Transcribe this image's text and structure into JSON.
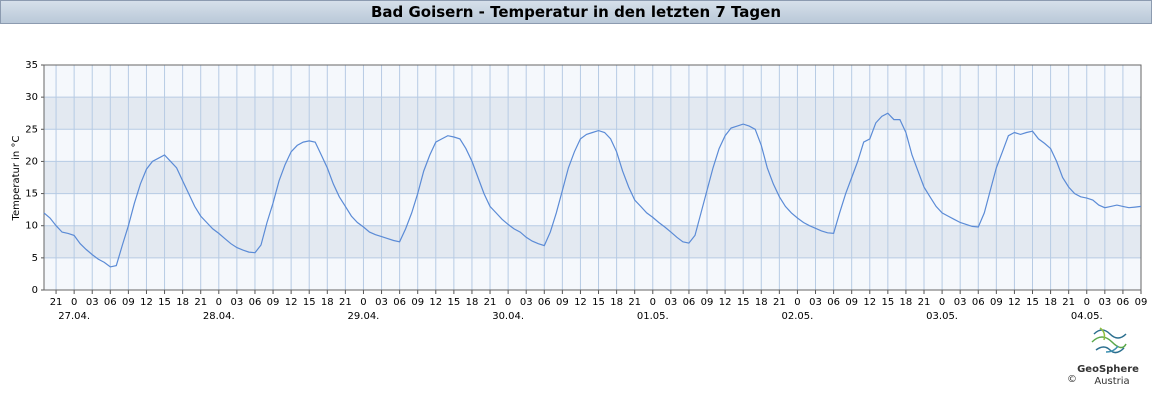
{
  "chart_data": {
    "type": "line",
    "title": "Bad Goisern - Temperatur in den letzten 7 Tagen",
    "y_label": "Temperatur in °C",
    "ylim": [
      0,
      35
    ],
    "yticks": [
      0,
      5,
      10,
      15,
      20,
      25,
      30,
      35
    ],
    "xlim": [
      -5,
      177
    ],
    "xticks": [
      {
        "value": -3,
        "label": "21"
      },
      {
        "value": 0,
        "label": "0"
      },
      {
        "value": 3,
        "label": "03"
      },
      {
        "value": 6,
        "label": "06"
      },
      {
        "value": 9,
        "label": "09"
      },
      {
        "value": 12,
        "label": "12"
      },
      {
        "value": 15,
        "label": "15"
      },
      {
        "value": 18,
        "label": "18"
      },
      {
        "value": 21,
        "label": "21"
      },
      {
        "value": 24,
        "label": "0"
      },
      {
        "value": 27,
        "label": "03"
      },
      {
        "value": 30,
        "label": "06"
      },
      {
        "value": 33,
        "label": "09"
      },
      {
        "value": 36,
        "label": "12"
      },
      {
        "value": 39,
        "label": "15"
      },
      {
        "value": 42,
        "label": "18"
      },
      {
        "value": 45,
        "label": "21"
      },
      {
        "value": 48,
        "label": "0"
      },
      {
        "value": 51,
        "label": "03"
      },
      {
        "value": 54,
        "label": "06"
      },
      {
        "value": 57,
        "label": "09"
      },
      {
        "value": 60,
        "label": "12"
      },
      {
        "value": 63,
        "label": "15"
      },
      {
        "value": 66,
        "label": "18"
      },
      {
        "value": 69,
        "label": "21"
      },
      {
        "value": 72,
        "label": "0"
      },
      {
        "value": 75,
        "label": "03"
      },
      {
        "value": 78,
        "label": "06"
      },
      {
        "value": 81,
        "label": "09"
      },
      {
        "value": 84,
        "label": "12"
      },
      {
        "value": 87,
        "label": "15"
      },
      {
        "value": 90,
        "label": "18"
      },
      {
        "value": 93,
        "label": "21"
      },
      {
        "value": 96,
        "label": "0"
      },
      {
        "value": 99,
        "label": "03"
      },
      {
        "value": 102,
        "label": "06"
      },
      {
        "value": 105,
        "label": "09"
      },
      {
        "value": 108,
        "label": "12"
      },
      {
        "value": 111,
        "label": "15"
      },
      {
        "value": 114,
        "label": "18"
      },
      {
        "value": 117,
        "label": "21"
      },
      {
        "value": 120,
        "label": "0"
      },
      {
        "value": 123,
        "label": "03"
      },
      {
        "value": 126,
        "label": "06"
      },
      {
        "value": 129,
        "label": "09"
      },
      {
        "value": 132,
        "label": "12"
      },
      {
        "value": 135,
        "label": "15"
      },
      {
        "value": 138,
        "label": "18"
      },
      {
        "value": 141,
        "label": "21"
      },
      {
        "value": 144,
        "label": "0"
      },
      {
        "value": 147,
        "label": "03"
      },
      {
        "value": 150,
        "label": "06"
      },
      {
        "value": 153,
        "label": "09"
      },
      {
        "value": 156,
        "label": "12"
      },
      {
        "value": 159,
        "label": "15"
      },
      {
        "value": 162,
        "label": "18"
      },
      {
        "value": 165,
        "label": "21"
      },
      {
        "value": 168,
        "label": "0"
      },
      {
        "value": 171,
        "label": "03"
      },
      {
        "value": 174,
        "label": "06"
      },
      {
        "value": 177,
        "label": "09"
      }
    ],
    "date_labels": [
      {
        "value": 0,
        "label": "27.04."
      },
      {
        "value": 24,
        "label": "28.04."
      },
      {
        "value": 48,
        "label": "29.04."
      },
      {
        "value": 72,
        "label": "30.04."
      },
      {
        "value": 96,
        "label": "01.05."
      },
      {
        "value": 120,
        "label": "02.05."
      },
      {
        "value": 144,
        "label": "03.05."
      },
      {
        "value": 168,
        "label": "04.05."
      }
    ],
    "grid": true,
    "x": [
      -5,
      -4,
      -3,
      -2,
      -1,
      0,
      1,
      2,
      3,
      4,
      5,
      6,
      7,
      8,
      9,
      10,
      11,
      12,
      13,
      14,
      15,
      16,
      17,
      18,
      19,
      20,
      21,
      22,
      23,
      24,
      25,
      26,
      27,
      28,
      29,
      30,
      31,
      32,
      33,
      34,
      35,
      36,
      37,
      38,
      39,
      40,
      41,
      42,
      43,
      44,
      45,
      46,
      47,
      48,
      49,
      50,
      51,
      52,
      53,
      54,
      55,
      56,
      57,
      58,
      59,
      60,
      61,
      62,
      63,
      64,
      65,
      66,
      67,
      68,
      69,
      70,
      71,
      72,
      73,
      74,
      75,
      76,
      77,
      78,
      79,
      80,
      81,
      82,
      83,
      84,
      85,
      86,
      87,
      88,
      89,
      90,
      91,
      92,
      93,
      94,
      95,
      96,
      97,
      98,
      99,
      100,
      101,
      102,
      103,
      104,
      105,
      106,
      107,
      108,
      109,
      110,
      111,
      112,
      113,
      114,
      115,
      116,
      117,
      118,
      119,
      120,
      121,
      122,
      123,
      124,
      125,
      126,
      127,
      128,
      129,
      130,
      131,
      132,
      133,
      134,
      135,
      136,
      137,
      138,
      139,
      140,
      141,
      142,
      143,
      144,
      145,
      146,
      147,
      148,
      149,
      150,
      151,
      152,
      153,
      154,
      155,
      156,
      157,
      158,
      159,
      160,
      161,
      162,
      163,
      164,
      165,
      166,
      167,
      168,
      169,
      170,
      171,
      172,
      173,
      174,
      175,
      176,
      177
    ],
    "series": [
      {
        "color": "#5b8bd6",
        "values": [
          12,
          11.2,
          10,
          9,
          8.8,
          8.5,
          7.2,
          6.3,
          5.5,
          4.8,
          4.3,
          3.6,
          3.8,
          7,
          10,
          13.5,
          16.5,
          18.8,
          20,
          20.5,
          21,
          20,
          19,
          17,
          15,
          13,
          11.5,
          10.5,
          9.5,
          8.8,
          8,
          7.2,
          6.6,
          6.2,
          5.9,
          5.8,
          7,
          10.5,
          13.5,
          17,
          19.5,
          21.5,
          22.5,
          23,
          23.2,
          23,
          21,
          19,
          16.5,
          14.5,
          13,
          11.5,
          10.5,
          9.8,
          9,
          8.6,
          8.3,
          8,
          7.7,
          7.5,
          9.5,
          12,
          15,
          18.5,
          21,
          23,
          23.5,
          24,
          23.8,
          23.5,
          22,
          20,
          17.5,
          15,
          13,
          12,
          11,
          10.2,
          9.5,
          9,
          8.2,
          7.6,
          7.2,
          6.9,
          9,
          12,
          15.5,
          19,
          21.5,
          23.5,
          24.2,
          24.5,
          24.8,
          24.5,
          23.5,
          21.5,
          18.5,
          16,
          14,
          13,
          12,
          11.3,
          10.5,
          9.8,
          9,
          8.2,
          7.5,
          7.3,
          8.5,
          12,
          15.5,
          19,
          22,
          24,
          25.2,
          25.5,
          25.8,
          25.5,
          25,
          22.5,
          19,
          16.5,
          14.5,
          13,
          12,
          11.2,
          10.5,
          10,
          9.6,
          9.2,
          8.9,
          8.8,
          12,
          15,
          17.5,
          20,
          23,
          23.5,
          26,
          27,
          27.5,
          26.5,
          26.5,
          24.5,
          21,
          18.5,
          16,
          14.5,
          13,
          12,
          11.5,
          11,
          10.5,
          10.2,
          9.9,
          9.8,
          12,
          15.5,
          19,
          21.5,
          24,
          24.5,
          24.2,
          24.5,
          24.7,
          23.5,
          22.8,
          22,
          20,
          17.5,
          16,
          15,
          14.5,
          14.3,
          14,
          13.2,
          12.8,
          13,
          13.2,
          13,
          12.8,
          12.9,
          13
        ]
      }
    ]
  },
  "logo": {
    "name": "GeoSphere",
    "sub": "Austria",
    "copyright": "©"
  }
}
